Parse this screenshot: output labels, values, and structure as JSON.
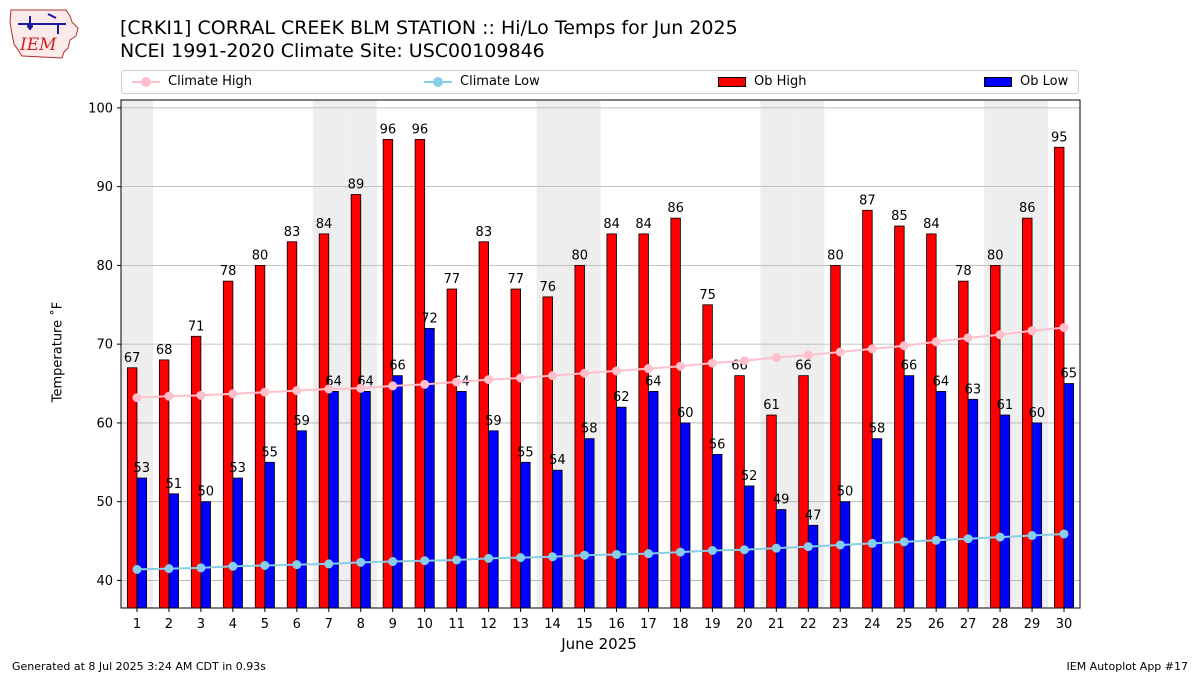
{
  "header": {
    "title_line1": "[CRKI1] CORRAL CREEK BLM STATION :: Hi/Lo Temps for Jun 2025",
    "title_line2": "NCEI 1991-2020 Climate Site: USC00109846"
  },
  "logo": {
    "text": "IEM"
  },
  "footer": {
    "left": "Generated at 8 Jul 2025 3:24 AM CDT in 0.93s",
    "right": "IEM Autoplot App #17"
  },
  "colors": {
    "ob_high": "#ff0000",
    "ob_low": "#0000ff",
    "climate_high": "#ffc0cb",
    "climate_low": "#87ceeb",
    "weekend_shade": "#eeeeee"
  },
  "chart_data": {
    "type": "bar",
    "xlabel": "June 2025",
    "ylabel": "Temperature $^\\circ$F",
    "ylabel_display": "Temperature ˚F",
    "ylim": [
      36.5,
      101
    ],
    "yticks": [
      40,
      50,
      60,
      70,
      80,
      90,
      100
    ],
    "grid": "horizontal",
    "legend_position": "top",
    "categories": [
      "1",
      "2",
      "3",
      "4",
      "5",
      "6",
      "7",
      "8",
      "9",
      "10",
      "11",
      "12",
      "13",
      "14",
      "15",
      "16",
      "17",
      "18",
      "19",
      "20",
      "21",
      "22",
      "23",
      "24",
      "25",
      "26",
      "27",
      "28",
      "29",
      "30"
    ],
    "shaded_days": [
      1,
      7,
      8,
      14,
      15,
      21,
      22,
      28,
      29
    ],
    "series": [
      {
        "name": "Ob High",
        "kind": "bar",
        "color": "#ff0000",
        "values": [
          67,
          68,
          71,
          78,
          80,
          83,
          84,
          89,
          96,
          96,
          77,
          83,
          77,
          76,
          80,
          84,
          84,
          86,
          75,
          66,
          61,
          66,
          80,
          87,
          85,
          84,
          78,
          80,
          86,
          95
        ]
      },
      {
        "name": "Ob Low",
        "kind": "bar",
        "color": "#0000ff",
        "values": [
          53,
          51,
          50,
          53,
          55,
          59,
          64,
          64,
          66,
          72,
          64,
          59,
          55,
          54,
          58,
          62,
          64,
          60,
          56,
          52,
          49,
          47,
          50,
          58,
          66,
          64,
          63,
          61,
          60,
          65
        ]
      },
      {
        "name": "Climate High",
        "kind": "line",
        "color": "#ffc0cb",
        "values": [
          63.2,
          63.4,
          63.5,
          63.7,
          63.9,
          64.1,
          64.3,
          64.4,
          64.7,
          64.9,
          65.2,
          65.5,
          65.7,
          66.0,
          66.3,
          66.6,
          66.9,
          67.2,
          67.6,
          67.9,
          68.3,
          68.6,
          69.0,
          69.4,
          69.8,
          70.3,
          70.8,
          71.2,
          71.7,
          72.1
        ]
      },
      {
        "name": "Climate Low",
        "kind": "line",
        "color": "#87ceeb",
        "values": [
          41.4,
          41.5,
          41.6,
          41.8,
          41.9,
          42.0,
          42.1,
          42.3,
          42.4,
          42.5,
          42.6,
          42.8,
          42.9,
          43.0,
          43.2,
          43.3,
          43.4,
          43.6,
          43.8,
          43.9,
          44.1,
          44.3,
          44.5,
          44.7,
          44.9,
          45.1,
          45.3,
          45.5,
          45.7,
          45.9
        ]
      }
    ]
  }
}
